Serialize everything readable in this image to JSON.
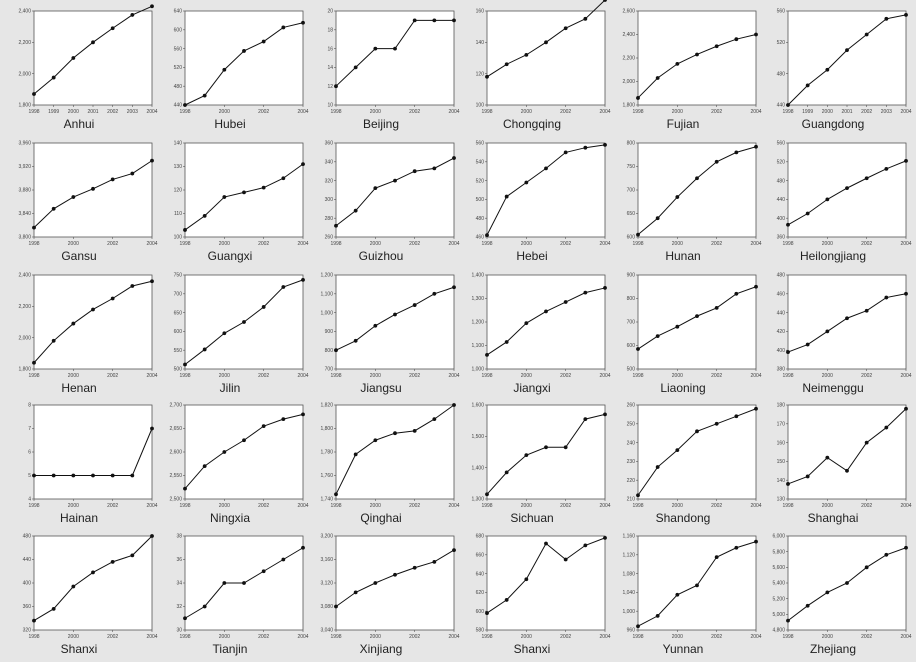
{
  "chart_data": [
    {
      "type": "line",
      "title": "Anhui",
      "x": [
        "1998",
        "1999",
        "2000",
        "2001",
        "2002",
        "2003",
        "2004"
      ],
      "values": [
        1870,
        1975,
        2100,
        2200,
        2290,
        2375,
        2430
      ],
      "ylim": [
        1800,
        2400
      ],
      "yticks": [
        "1,800",
        "2,000",
        "2,200",
        "2,400"
      ],
      "xticks": [
        "1998",
        "1999",
        "2000",
        "2001",
        "2002",
        "2003",
        "2004"
      ]
    },
    {
      "type": "line",
      "title": "Hubei",
      "x": [
        "1998",
        "1999",
        "2000",
        "2001",
        "2002",
        "2003",
        "2004"
      ],
      "values": [
        440,
        460,
        515,
        555,
        575,
        605,
        615
      ],
      "ylim": [
        440,
        640
      ],
      "yticks": [
        "440",
        "480",
        "520",
        "560",
        "600",
        "640"
      ],
      "xticks": [
        "1998",
        "2000",
        "2002",
        "2004"
      ]
    },
    {
      "type": "line",
      "title": "Beijing",
      "x": [
        "1998",
        "1999",
        "2000",
        "2001",
        "2002",
        "2003",
        "2004"
      ],
      "values": [
        12,
        14,
        16,
        16,
        19,
        19,
        19
      ],
      "ylim": [
        10,
        20
      ],
      "yticks": [
        "10",
        "12",
        "14",
        "16",
        "18",
        "20"
      ],
      "xticks": [
        "1998",
        "2000",
        "2002",
        "2004"
      ]
    },
    {
      "type": "line",
      "title": "Chongqing",
      "x": [
        "1998",
        "1999",
        "2000",
        "2001",
        "2002",
        "2003",
        "2004"
      ],
      "values": [
        118,
        126,
        132,
        140,
        149,
        155,
        167
      ],
      "ylim": [
        100,
        160
      ],
      "yticks": [
        "100",
        "120",
        "140",
        "160"
      ],
      "xticks": [
        "1998",
        "2000",
        "2002",
        "2004"
      ]
    },
    {
      "type": "line",
      "title": "Fujian",
      "x": [
        "1998",
        "1999",
        "2000",
        "2001",
        "2002",
        "2003",
        "2004"
      ],
      "values": [
        1860,
        2030,
        2150,
        2230,
        2300,
        2360,
        2400
      ],
      "ylim": [
        1800,
        2600
      ],
      "yticks": [
        "1,800",
        "2,000",
        "2,200",
        "2,400",
        "2,600"
      ],
      "xticks": [
        "1998",
        "2000",
        "2002",
        "2004"
      ]
    },
    {
      "type": "line",
      "title": "Guangdong",
      "x": [
        "1998",
        "1999",
        "2000",
        "2001",
        "2002",
        "2003",
        "2004"
      ],
      "values": [
        440,
        465,
        485,
        510,
        530,
        550,
        555
      ],
      "ylim": [
        440,
        560
      ],
      "yticks": [
        "440",
        "480",
        "520",
        "560"
      ],
      "xticks": [
        "1998",
        "1999",
        "2000",
        "2001",
        "2002",
        "2003",
        "2004"
      ]
    },
    {
      "type": "line",
      "title": "Gansu",
      "x": [
        "1998",
        "1999",
        "2000",
        "2001",
        "2002",
        "2003",
        "2004"
      ],
      "values": [
        3816,
        3848,
        3868,
        3882,
        3898,
        3908,
        3930
      ],
      "ylim": [
        3800,
        3960
      ],
      "yticks": [
        "3,800",
        "3,840",
        "3,880",
        "3,920",
        "3,960"
      ],
      "xticks": [
        "1998",
        "2000",
        "2002",
        "2004"
      ]
    },
    {
      "type": "line",
      "title": "Guangxi",
      "x": [
        "1998",
        "1999",
        "2000",
        "2001",
        "2002",
        "2003",
        "2004"
      ],
      "values": [
        103,
        109,
        117,
        119,
        121,
        125,
        131
      ],
      "ylim": [
        100,
        140
      ],
      "yticks": [
        "100",
        "110",
        "120",
        "130",
        "140"
      ],
      "xticks": [
        "1998",
        "2000",
        "2002",
        "2004"
      ]
    },
    {
      "type": "line",
      "title": "Guizhou",
      "x": [
        "1998",
        "1999",
        "2000",
        "2001",
        "2002",
        "2003",
        "2004"
      ],
      "values": [
        272,
        288,
        312,
        320,
        330,
        333,
        344
      ],
      "ylim": [
        260,
        360
      ],
      "yticks": [
        "260",
        "280",
        "300",
        "320",
        "340",
        "360"
      ],
      "xticks": [
        "1998",
        "2000",
        "2002",
        "2004"
      ]
    },
    {
      "type": "line",
      "title": "Hebei",
      "x": [
        "1998",
        "1999",
        "2000",
        "2001",
        "2002",
        "2003",
        "2004"
      ],
      "values": [
        462,
        503,
        518,
        533,
        550,
        555,
        558
      ],
      "ylim": [
        460,
        560
      ],
      "yticks": [
        "460",
        "480",
        "500",
        "520",
        "540",
        "560"
      ],
      "xticks": [
        "1998",
        "2000",
        "2002",
        "2004"
      ]
    },
    {
      "type": "line",
      "title": "Hunan",
      "x": [
        "1998",
        "1999",
        "2000",
        "2001",
        "2002",
        "2003",
        "2004"
      ],
      "values": [
        605,
        640,
        685,
        725,
        760,
        780,
        792
      ],
      "ylim": [
        600,
        800
      ],
      "yticks": [
        "600",
        "650",
        "700",
        "750",
        "800"
      ],
      "xticks": [
        "1998",
        "2000",
        "2002",
        "2004"
      ]
    },
    {
      "type": "line",
      "title": "Heilongjiang",
      "x": [
        "1998",
        "1999",
        "2000",
        "2001",
        "2002",
        "2003",
        "2004"
      ],
      "values": [
        386,
        410,
        440,
        464,
        485,
        505,
        522
      ],
      "ylim": [
        360,
        560
      ],
      "yticks": [
        "360",
        "400",
        "440",
        "480",
        "520",
        "560"
      ],
      "xticks": [
        "1998",
        "2000",
        "2002",
        "2004"
      ]
    },
    {
      "type": "line",
      "title": "Henan",
      "x": [
        "1998",
        "1999",
        "2000",
        "2001",
        "2002",
        "2003",
        "2004"
      ],
      "values": [
        1840,
        1980,
        2090,
        2180,
        2250,
        2330,
        2360
      ],
      "ylim": [
        1800,
        2400
      ],
      "yticks": [
        "1,800",
        "2,000",
        "2,200",
        "2,400"
      ],
      "xticks": [
        "1998",
        "2000",
        "2002",
        "2004"
      ]
    },
    {
      "type": "line",
      "title": "Jilin",
      "x": [
        "1998",
        "1999",
        "2000",
        "2001",
        "2002",
        "2003",
        "2004"
      ],
      "values": [
        512,
        552,
        595,
        625,
        665,
        718,
        737
      ],
      "ylim": [
        500,
        750
      ],
      "yticks": [
        "500",
        "550",
        "600",
        "650",
        "700",
        "750"
      ],
      "xticks": [
        "1998",
        "2000",
        "2002",
        "2004"
      ]
    },
    {
      "type": "line",
      "title": "Jiangsu",
      "x": [
        "1998",
        "1999",
        "2000",
        "2001",
        "2002",
        "2003",
        "2004"
      ],
      "values": [
        800,
        850,
        930,
        990,
        1040,
        1100,
        1135
      ],
      "ylim": [
        700,
        1200
      ],
      "yticks": [
        "700",
        "800",
        "900",
        "1,000",
        "1,100",
        "1,200"
      ],
      "xticks": [
        "1998",
        "2000",
        "2002",
        "2004"
      ]
    },
    {
      "type": "line",
      "title": "Jiangxi",
      "x": [
        "1998",
        "1999",
        "2000",
        "2001",
        "2002",
        "2003",
        "2004"
      ],
      "values": [
        1060,
        1115,
        1195,
        1245,
        1285,
        1325,
        1345
      ],
      "ylim": [
        1000,
        1400
      ],
      "yticks": [
        "1,000",
        "1,100",
        "1,200",
        "1,300",
        "1,400"
      ],
      "xticks": [
        "1998",
        "2000",
        "2002",
        "2004"
      ]
    },
    {
      "type": "line",
      "title": "Liaoning",
      "x": [
        "1998",
        "1999",
        "2000",
        "2001",
        "2002",
        "2003",
        "2004"
      ],
      "values": [
        585,
        640,
        680,
        725,
        760,
        820,
        850
      ],
      "ylim": [
        500,
        900
      ],
      "yticks": [
        "500",
        "600",
        "700",
        "800",
        "900"
      ],
      "xticks": [
        "1998",
        "2000",
        "2002",
        "2004"
      ]
    },
    {
      "type": "line",
      "title": "Neimenggu",
      "x": [
        "1998",
        "1999",
        "2000",
        "2001",
        "2002",
        "2003",
        "2004"
      ],
      "values": [
        398,
        406,
        420,
        434,
        442,
        456,
        460
      ],
      "ylim": [
        380,
        480
      ],
      "yticks": [
        "380",
        "400",
        "420",
        "440",
        "460",
        "480"
      ],
      "xticks": [
        "1998",
        "2000",
        "2002",
        "2004"
      ]
    },
    {
      "type": "line",
      "title": "Hainan",
      "x": [
        "1998",
        "1999",
        "2000",
        "2001",
        "2002",
        "2003",
        "2004"
      ],
      "values": [
        5,
        5,
        5,
        5,
        5,
        5,
        7
      ],
      "ylim": [
        4,
        8
      ],
      "yticks": [
        "4",
        "5",
        "6",
        "7",
        "8"
      ],
      "xticks": [
        "1998",
        "2000",
        "2002",
        "2004"
      ]
    },
    {
      "type": "line",
      "title": "Ningxia",
      "x": [
        "1998",
        "1999",
        "2000",
        "2001",
        "2002",
        "2003",
        "2004"
      ],
      "values": [
        2522,
        2570,
        2600,
        2625,
        2655,
        2670,
        2680
      ],
      "ylim": [
        2500,
        2700
      ],
      "yticks": [
        "2,500",
        "2,550",
        "2,600",
        "2,650",
        "2,700"
      ],
      "xticks": [
        "1998",
        "2000",
        "2002",
        "2004"
      ]
    },
    {
      "type": "line",
      "title": "Qinghai",
      "x": [
        "1998",
        "1999",
        "2000",
        "2001",
        "2002",
        "2003",
        "2004"
      ],
      "values": [
        1744,
        1778,
        1790,
        1796,
        1798,
        1808,
        1820
      ],
      "ylim": [
        1740,
        1820
      ],
      "yticks": [
        "1,740",
        "1,760",
        "1,780",
        "1,800",
        "1,820"
      ],
      "xticks": [
        "1998",
        "2000",
        "2002",
        "2004"
      ]
    },
    {
      "type": "line",
      "title": "Sichuan",
      "x": [
        "1998",
        "1999",
        "2000",
        "2001",
        "2002",
        "2003",
        "2004"
      ],
      "values": [
        1315,
        1385,
        1440,
        1465,
        1465,
        1555,
        1570
      ],
      "ylim": [
        1300,
        1600
      ],
      "yticks": [
        "1,300",
        "1,400",
        "1,500",
        "1,600"
      ],
      "xticks": [
        "1998",
        "2000",
        "2002",
        "2004"
      ]
    },
    {
      "type": "line",
      "title": "Shandong",
      "x": [
        "1998",
        "1999",
        "2000",
        "2001",
        "2002",
        "2003",
        "2004"
      ],
      "values": [
        212,
        227,
        236,
        246,
        250,
        254,
        258
      ],
      "ylim": [
        210,
        260
      ],
      "yticks": [
        "210",
        "220",
        "230",
        "240",
        "250",
        "260"
      ],
      "xticks": [
        "1998",
        "2000",
        "2002",
        "2004"
      ]
    },
    {
      "type": "line",
      "title": "Shanghai",
      "x": [
        "1998",
        "1999",
        "2000",
        "2001",
        "2002",
        "2003",
        "2004"
      ],
      "values": [
        138,
        142,
        152,
        145,
        160,
        168,
        178
      ],
      "ylim": [
        130,
        180
      ],
      "yticks": [
        "130",
        "140",
        "150",
        "160",
        "170",
        "180"
      ],
      "xticks": [
        "1998",
        "2000",
        "2002",
        "2004"
      ]
    },
    {
      "type": "line",
      "title": "Shanxi",
      "x": [
        "1998",
        "1999",
        "2000",
        "2001",
        "2002",
        "2003",
        "2004"
      ],
      "values": [
        336,
        356,
        394,
        418,
        436,
        447,
        480
      ],
      "ylim": [
        320,
        480
      ],
      "yticks": [
        "320",
        "360",
        "400",
        "440",
        "480"
      ],
      "xticks": [
        "1998",
        "2000",
        "2002",
        "2004"
      ]
    },
    {
      "type": "line",
      "title": "Tianjin",
      "x": [
        "1998",
        "1999",
        "2000",
        "2001",
        "2002",
        "2003",
        "2004"
      ],
      "values": [
        31,
        32,
        34,
        34,
        35,
        36,
        37
      ],
      "ylim": [
        30,
        38
      ],
      "yticks": [
        "30",
        "32",
        "34",
        "36",
        "38"
      ],
      "xticks": [
        "1998",
        "2000",
        "2002",
        "2004"
      ]
    },
    {
      "type": "line",
      "title": "Xinjiang",
      "x": [
        "1998",
        "1999",
        "2000",
        "2001",
        "2002",
        "2003",
        "2004"
      ],
      "values": [
        3080,
        3104,
        3120,
        3134,
        3146,
        3156,
        3176
      ],
      "ylim": [
        3040,
        3200
      ],
      "yticks": [
        "3,040",
        "3,080",
        "3,120",
        "3,160",
        "3,200"
      ],
      "xticks": [
        "1998",
        "2000",
        "2002",
        "2004"
      ]
    },
    {
      "type": "line",
      "title": "Shanxi",
      "x": [
        "1998",
        "1999",
        "2000",
        "2001",
        "2002",
        "2003",
        "2004"
      ],
      "values": [
        598,
        612,
        634,
        672,
        655,
        670,
        678
      ],
      "ylim": [
        580,
        680
      ],
      "yticks": [
        "580",
        "600",
        "620",
        "640",
        "660",
        "680"
      ],
      "xticks": [
        "1998",
        "2000",
        "2002",
        "2004"
      ]
    },
    {
      "type": "line",
      "title": "Yunnan",
      "x": [
        "1998",
        "1999",
        "2000",
        "2001",
        "2002",
        "2003",
        "2004"
      ],
      "values": [
        968,
        990,
        1035,
        1055,
        1115,
        1135,
        1148
      ],
      "ylim": [
        960,
        1160
      ],
      "yticks": [
        "960",
        "1,000",
        "1,040",
        "1,080",
        "1,120",
        "1,160"
      ],
      "xticks": [
        "1998",
        "2000",
        "2002",
        "2004"
      ]
    },
    {
      "type": "line",
      "title": "Zhejiang",
      "x": [
        "1998",
        "1999",
        "2000",
        "2001",
        "2002",
        "2003",
        "2004"
      ],
      "values": [
        4920,
        5110,
        5280,
        5400,
        5600,
        5760,
        5850
      ],
      "ylim": [
        4800,
        6000
      ],
      "yticks": [
        "4,800",
        "5,000",
        "5,200",
        "5,400",
        "5,600",
        "5,800",
        "6,000"
      ],
      "xticks": [
        "1998",
        "2000",
        "2002",
        "2004"
      ]
    }
  ]
}
